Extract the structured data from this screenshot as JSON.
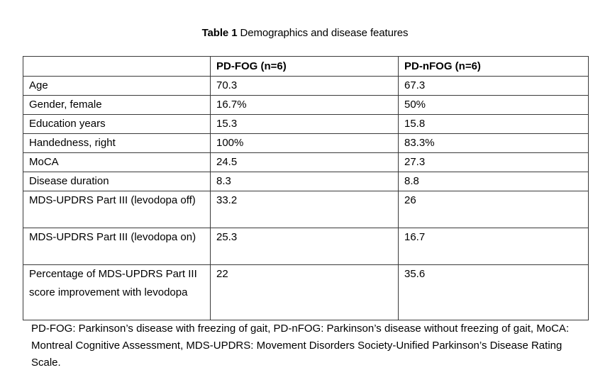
{
  "caption": {
    "label": "Table 1",
    "text": " Demographics and disease features"
  },
  "table": {
    "headers": [
      "",
      "PD-FOG (n=6)",
      "PD-nFOG (n=6)"
    ],
    "rows": [
      [
        "Age",
        "70.3",
        "67.3"
      ],
      [
        "Gender, female",
        "16.7%",
        "50%"
      ],
      [
        "Education years",
        "15.3",
        "15.8"
      ],
      [
        "Handedness, right",
        "100%",
        "83.3%"
      ],
      [
        "MoCA",
        "24.5",
        "27.3"
      ],
      [
        "Disease duration",
        "8.3",
        "8.8"
      ],
      [
        "MDS-UPDRS Part III (levodopa off)",
        "33.2",
        "26"
      ],
      [
        "MDS-UPDRS Part III (levodopa on)",
        "25.3",
        "16.7"
      ],
      [
        "Percentage of MDS-UPDRS Part III score improvement with levodopa",
        "22",
        "35.6"
      ]
    ]
  },
  "footnote": "PD-FOG: Parkinson’s disease with freezing of gait, PD-nFOG: Parkinson’s disease without freezing of gait, MoCA: Montreal Cognitive Assessment, MDS-UPDRS: Movement Disorders Society-Unified Parkinson’s Disease Rating Scale."
}
